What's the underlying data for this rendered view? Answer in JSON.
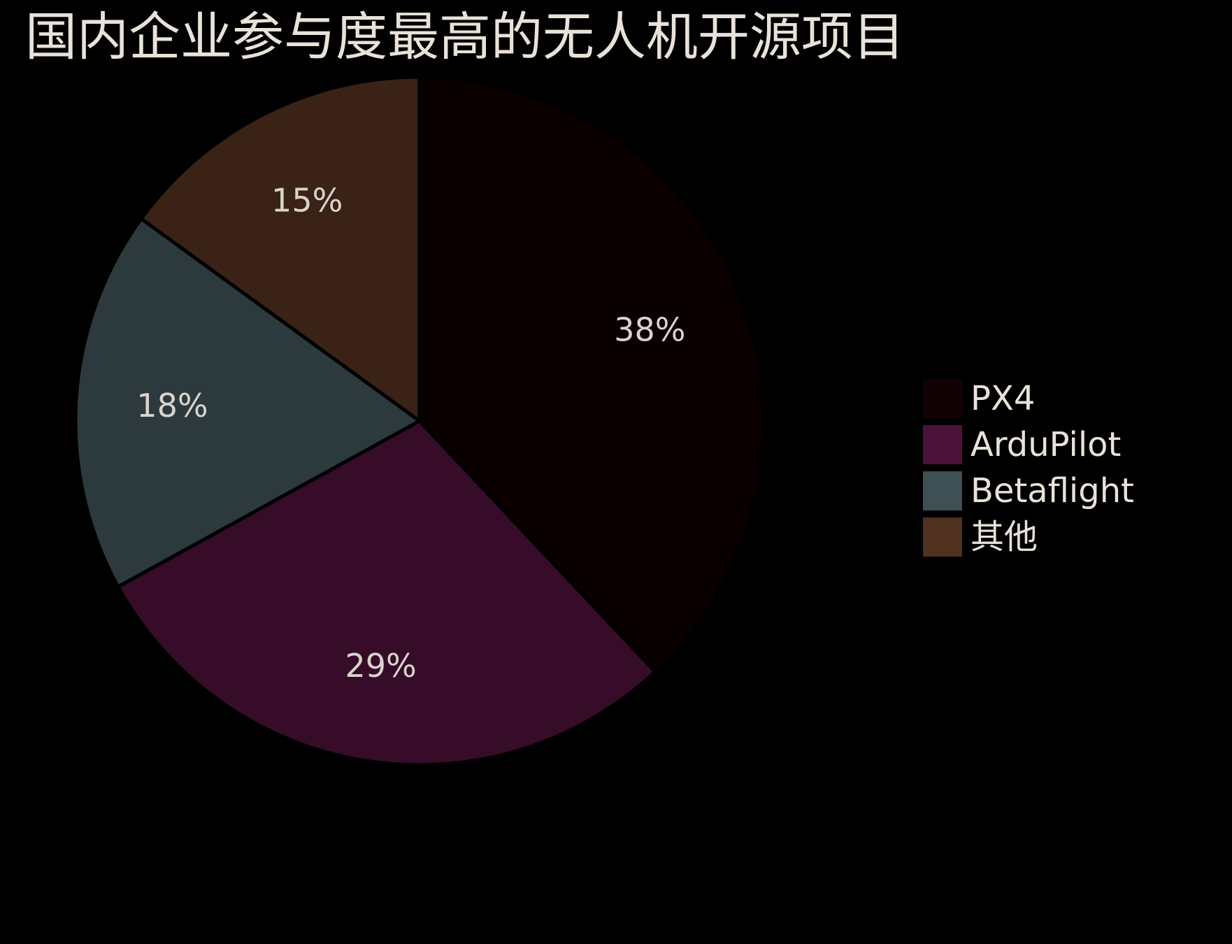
{
  "chart_data": {
    "type": "pie",
    "title": "国内企业参与度最高的无人机开源项目",
    "start_angle_deg": 90,
    "direction": "clockwise",
    "legend_position": "right",
    "background": "#000000",
    "slices": [
      {
        "label": "PX4",
        "value": 38,
        "display": "38%",
        "color": "#0a0000",
        "legend_color": "#120204"
      },
      {
        "label": "ArduPilot",
        "value": 29,
        "display": "29%",
        "color": "#360c28",
        "legend_color": "#4a1239"
      },
      {
        "label": "Betaflight",
        "value": 18,
        "display": "18%",
        "color": "#2d3a3d",
        "legend_color": "#3f5054"
      },
      {
        "label": "其他",
        "value": 15,
        "display": "15%",
        "color": "#3a2216",
        "legend_color": "#50301f"
      }
    ]
  }
}
